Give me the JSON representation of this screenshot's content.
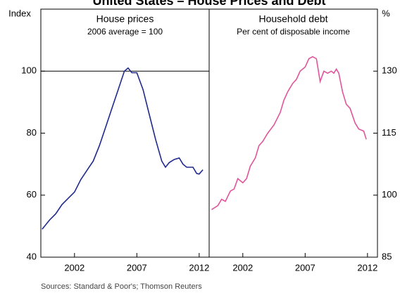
{
  "title": "United States – House Prices and Debt",
  "source": "Sources: Standard & Poor's; Thomson Reuters",
  "chart_data": [
    {
      "type": "line",
      "title": "House prices",
      "subtitle": "2006 average = 100",
      "y_label": "Index",
      "color": "#1f2a8c",
      "axis_side": "left",
      "xlim": [
        1999.3,
        2012.8
      ],
      "xticks": [
        2002,
        2007,
        2012
      ],
      "ylim": [
        40,
        120
      ],
      "yticks": [
        40,
        60,
        80,
        100
      ],
      "reference_line": 100,
      "x": [
        1999.4,
        2000.0,
        2000.5,
        2001.0,
        2001.5,
        2002.0,
        2002.5,
        2003.0,
        2003.5,
        2004.0,
        2004.5,
        2005.0,
        2005.5,
        2006.0,
        2006.3,
        2006.6,
        2007.0,
        2007.5,
        2008.0,
        2008.5,
        2009.0,
        2009.3,
        2009.6,
        2010.0,
        2010.4,
        2010.7,
        2011.0,
        2011.5,
        2011.8,
        2012.0,
        2012.3
      ],
      "values": [
        49,
        52,
        54,
        57,
        59,
        61,
        65,
        68,
        71,
        76,
        82,
        88,
        94,
        100,
        101,
        99.5,
        99.5,
        94,
        86,
        78,
        71,
        69,
        70.5,
        71.5,
        72,
        70,
        69,
        69,
        67,
        66.8,
        68.2
      ]
    },
    {
      "type": "line",
      "title": "Household debt",
      "subtitle": "Per cent of disposable income",
      "y_label": "%",
      "color": "#e0559c",
      "axis_side": "right",
      "xlim": [
        1999.3,
        2012.8
      ],
      "xticks": [
        2002,
        2007,
        2012
      ],
      "ylim": [
        85,
        145
      ],
      "yticks": [
        85,
        100,
        115,
        130
      ],
      "x": [
        1999.5,
        2000.0,
        2000.3,
        2000.6,
        2001.0,
        2001.3,
        2001.6,
        2002.0,
        2002.3,
        2002.6,
        2003.0,
        2003.3,
        2003.6,
        2004.0,
        2004.5,
        2005.0,
        2005.3,
        2005.6,
        2006.0,
        2006.3,
        2006.6,
        2007.0,
        2007.3,
        2007.6,
        2007.9,
        2008.2,
        2008.5,
        2008.8,
        2009.1,
        2009.3,
        2009.5,
        2009.7,
        2010.0,
        2010.3,
        2010.6,
        2011.0,
        2011.3,
        2011.7,
        2011.9
      ],
      "values": [
        96.5,
        97.5,
        99,
        98.5,
        101,
        101.5,
        104,
        103,
        104,
        107,
        109,
        112,
        113,
        115,
        117,
        120,
        123,
        125,
        127,
        128,
        130,
        131,
        133,
        133.5,
        133,
        127.5,
        130,
        129.5,
        130,
        129.5,
        130.5,
        129.5,
        125,
        122,
        121,
        117.5,
        116,
        115.5,
        113.5
      ]
    }
  ]
}
